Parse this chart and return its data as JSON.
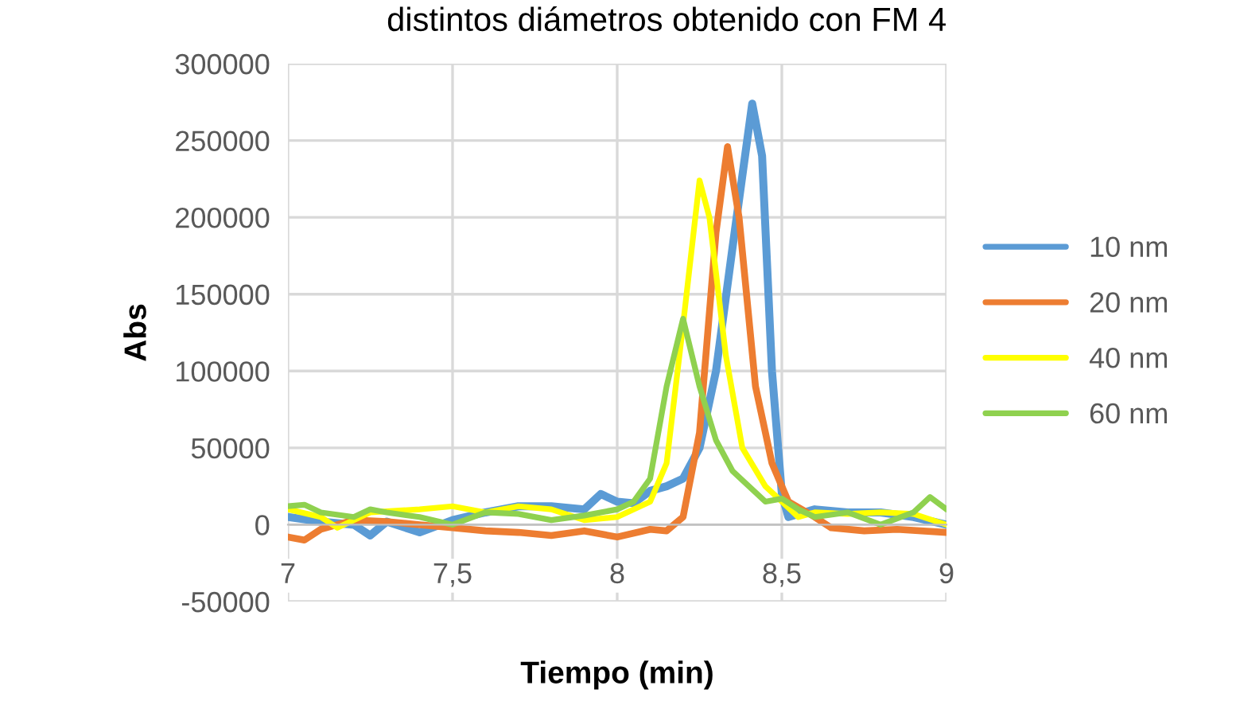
{
  "chart_data": {
    "type": "line",
    "title": "distintos diámetros obtenido con FM 4",
    "xlabel": "Tiempo (min)",
    "ylabel": "Abs",
    "xlim": [
      7,
      9
    ],
    "xticks": [
      7,
      {
        "value": 7.5,
        "label": "7,5"
      },
      8,
      {
        "value": 8.5,
        "label": "8,5"
      },
      9
    ],
    "ylim": [
      -50000,
      300000
    ],
    "yticks": [
      -50000,
      0,
      50000,
      100000,
      150000,
      200000,
      250000,
      300000
    ],
    "grid": true,
    "legend": "right",
    "marker": "none",
    "line_style": "solid",
    "series": [
      {
        "name": "10 nm",
        "color": "#5b9bd5",
        "x": [
          7.0,
          7.1,
          7.2,
          7.25,
          7.3,
          7.4,
          7.5,
          7.6,
          7.7,
          7.8,
          7.9,
          7.95,
          8.0,
          8.05,
          8.1,
          8.15,
          8.2,
          8.25,
          8.3,
          8.35,
          8.41,
          8.44,
          8.47,
          8.5,
          8.52,
          8.6,
          8.7,
          8.8,
          8.9,
          9.0
        ],
        "values": [
          5000,
          2000,
          0,
          -7000,
          2000,
          -5000,
          3000,
          8000,
          12000,
          12000,
          10000,
          20000,
          15000,
          14000,
          22000,
          25000,
          30000,
          50000,
          100000,
          180000,
          274000,
          240000,
          100000,
          20000,
          5000,
          10000,
          8000,
          8000,
          5000,
          0
        ]
      },
      {
        "name": "20 nm",
        "color": "#ed7d31",
        "x": [
          7.0,
          7.05,
          7.1,
          7.2,
          7.3,
          7.4,
          7.5,
          7.6,
          7.7,
          7.8,
          7.9,
          8.0,
          8.1,
          8.15,
          8.2,
          8.25,
          8.3,
          8.335,
          8.37,
          8.42,
          8.47,
          8.52,
          8.6,
          8.65,
          8.75,
          8.85,
          9.0
        ],
        "values": [
          -8000,
          -10000,
          -3000,
          3000,
          2000,
          0,
          -2000,
          -4000,
          -5000,
          -7000,
          -4000,
          -8000,
          -3000,
          -4000,
          5000,
          60000,
          190000,
          246000,
          200000,
          90000,
          40000,
          15000,
          5000,
          -2000,
          -4000,
          -3000,
          -5000
        ]
      },
      {
        "name": "40 nm",
        "color": "#ffff00",
        "x": [
          7.0,
          7.1,
          7.15,
          7.25,
          7.4,
          7.5,
          7.6,
          7.7,
          7.8,
          7.9,
          8.0,
          8.1,
          8.15,
          8.2,
          8.25,
          8.28,
          8.33,
          8.38,
          8.45,
          8.5,
          8.55,
          8.6,
          8.7,
          8.8,
          8.9,
          9.0
        ],
        "values": [
          10000,
          5000,
          -2000,
          8000,
          10000,
          12000,
          8000,
          12000,
          10000,
          3000,
          5000,
          15000,
          40000,
          130000,
          224000,
          200000,
          110000,
          50000,
          25000,
          15000,
          5000,
          8000,
          7000,
          8000,
          7000,
          0
        ]
      },
      {
        "name": "60 nm",
        "color": "#8fd14f",
        "x": [
          7.0,
          7.05,
          7.1,
          7.2,
          7.25,
          7.3,
          7.4,
          7.5,
          7.6,
          7.7,
          7.8,
          7.9,
          8.0,
          8.05,
          8.1,
          8.15,
          8.2,
          8.25,
          8.3,
          8.35,
          8.4,
          8.45,
          8.5,
          8.55,
          8.6,
          8.7,
          8.8,
          8.9,
          8.95,
          9.0
        ],
        "values": [
          12000,
          13000,
          8000,
          5000,
          10000,
          8000,
          5000,
          0,
          8000,
          7000,
          3000,
          6000,
          10000,
          15000,
          30000,
          90000,
          134000,
          90000,
          55000,
          35000,
          25000,
          15000,
          17000,
          10000,
          5000,
          8000,
          0,
          8000,
          18000,
          10000
        ]
      }
    ]
  }
}
